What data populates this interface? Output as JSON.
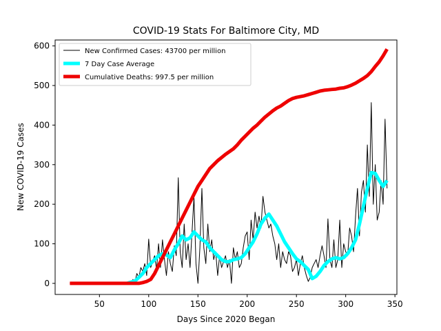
{
  "chart_data": {
    "type": "line",
    "title": "COVID-19 Stats For Baltimore City, MD",
    "xlabel": "Days Since 2020 Began",
    "ylabel": "New COVID-19 Cases",
    "xlim": [
      5,
      352
    ],
    "ylim": [
      -28,
      615
    ],
    "xticks": [
      50,
      100,
      150,
      200,
      250,
      300,
      350
    ],
    "yticks": [
      0,
      100,
      200,
      300,
      400,
      500,
      600
    ],
    "grid": false,
    "legend_position": "top-left",
    "series": [
      {
        "name": "New Confirmed Cases: 43700 per million",
        "color": "#000000",
        "style": "thin",
        "points": [
          [
            20,
            0
          ],
          [
            40,
            0
          ],
          [
            60,
            0
          ],
          [
            78,
            0
          ],
          [
            80,
            5
          ],
          [
            82,
            0
          ],
          [
            84,
            10
          ],
          [
            86,
            3
          ],
          [
            88,
            25
          ],
          [
            90,
            15
          ],
          [
            92,
            40
          ],
          [
            94,
            30
          ],
          [
            96,
            50
          ],
          [
            98,
            20
          ],
          [
            100,
            112
          ],
          [
            102,
            40
          ],
          [
            104,
            55
          ],
          [
            106,
            70
          ],
          [
            108,
            35
          ],
          [
            110,
            100
          ],
          [
            112,
            40
          ],
          [
            114,
            110
          ],
          [
            116,
            60
          ],
          [
            118,
            20
          ],
          [
            120,
            80
          ],
          [
            122,
            50
          ],
          [
            124,
            30
          ],
          [
            126,
            95
          ],
          [
            128,
            70
          ],
          [
            130,
            267
          ],
          [
            132,
            80
          ],
          [
            134,
            40
          ],
          [
            136,
            150
          ],
          [
            138,
            60
          ],
          [
            140,
            100
          ],
          [
            142,
            40
          ],
          [
            144,
            130
          ],
          [
            146,
            218
          ],
          [
            148,
            50
          ],
          [
            150,
            0
          ],
          [
            152,
            90
          ],
          [
            154,
            240
          ],
          [
            156,
            90
          ],
          [
            158,
            50
          ],
          [
            160,
            150
          ],
          [
            162,
            80
          ],
          [
            164,
            110
          ],
          [
            166,
            60
          ],
          [
            168,
            80
          ],
          [
            170,
            20
          ],
          [
            172,
            70
          ],
          [
            174,
            40
          ],
          [
            176,
            55
          ],
          [
            178,
            70
          ],
          [
            180,
            40
          ],
          [
            182,
            60
          ],
          [
            184,
            0
          ],
          [
            186,
            90
          ],
          [
            188,
            60
          ],
          [
            190,
            80
          ],
          [
            192,
            40
          ],
          [
            194,
            50
          ],
          [
            196,
            90
          ],
          [
            198,
            120
          ],
          [
            200,
            130
          ],
          [
            202,
            60
          ],
          [
            204,
            160
          ],
          [
            206,
            110
          ],
          [
            208,
            180
          ],
          [
            210,
            140
          ],
          [
            212,
            170
          ],
          [
            214,
            140
          ],
          [
            216,
            220
          ],
          [
            218,
            180
          ],
          [
            220,
            160
          ],
          [
            222,
            140
          ],
          [
            224,
            150
          ],
          [
            226,
            120
          ],
          [
            228,
            100
          ],
          [
            230,
            60
          ],
          [
            232,
            100
          ],
          [
            234,
            40
          ],
          [
            236,
            80
          ],
          [
            238,
            60
          ],
          [
            240,
            50
          ],
          [
            242,
            80
          ],
          [
            244,
            70
          ],
          [
            246,
            30
          ],
          [
            248,
            40
          ],
          [
            250,
            60
          ],
          [
            252,
            20
          ],
          [
            254,
            50
          ],
          [
            256,
            70
          ],
          [
            258,
            40
          ],
          [
            260,
            20
          ],
          [
            262,
            5
          ],
          [
            264,
            15
          ],
          [
            266,
            40
          ],
          [
            268,
            50
          ],
          [
            270,
            60
          ],
          [
            272,
            40
          ],
          [
            274,
            70
          ],
          [
            276,
            95
          ],
          [
            278,
            70
          ],
          [
            280,
            40
          ],
          [
            282,
            163
          ],
          [
            284,
            60
          ],
          [
            286,
            40
          ],
          [
            288,
            110
          ],
          [
            290,
            40
          ],
          [
            292,
            60
          ],
          [
            294,
            160
          ],
          [
            296,
            40
          ],
          [
            298,
            100
          ],
          [
            300,
            80
          ],
          [
            302,
            70
          ],
          [
            304,
            140
          ],
          [
            306,
            120
          ],
          [
            308,
            80
          ],
          [
            310,
            170
          ],
          [
            312,
            240
          ],
          [
            314,
            120
          ],
          [
            316,
            230
          ],
          [
            318,
            260
          ],
          [
            320,
            180
          ],
          [
            322,
            350
          ],
          [
            324,
            220
          ],
          [
            326,
            457
          ],
          [
            328,
            200
          ],
          [
            330,
            300
          ],
          [
            332,
            160
          ],
          [
            334,
            180
          ],
          [
            336,
            260
          ],
          [
            338,
            200
          ],
          [
            340,
            415
          ],
          [
            342,
            240
          ]
        ]
      },
      {
        "name": "7 Day Case Average",
        "color": "#00ffff",
        "style": "thick",
        "points": [
          [
            78,
            0
          ],
          [
            82,
            3
          ],
          [
            86,
            6
          ],
          [
            90,
            15
          ],
          [
            94,
            25
          ],
          [
            98,
            40
          ],
          [
            102,
            50
          ],
          [
            106,
            60
          ],
          [
            110,
            70
          ],
          [
            114,
            75
          ],
          [
            118,
            72
          ],
          [
            122,
            65
          ],
          [
            126,
            85
          ],
          [
            130,
            100
          ],
          [
            134,
            120
          ],
          [
            138,
            110
          ],
          [
            142,
            115
          ],
          [
            146,
            130
          ],
          [
            150,
            120
          ],
          [
            154,
            110
          ],
          [
            158,
            105
          ],
          [
            162,
            90
          ],
          [
            166,
            80
          ],
          [
            170,
            70
          ],
          [
            174,
            60
          ],
          [
            178,
            55
          ],
          [
            182,
            55
          ],
          [
            186,
            60
          ],
          [
            190,
            62
          ],
          [
            194,
            65
          ],
          [
            198,
            75
          ],
          [
            202,
            90
          ],
          [
            206,
            105
          ],
          [
            210,
            125
          ],
          [
            214,
            150
          ],
          [
            218,
            165
          ],
          [
            222,
            175
          ],
          [
            226,
            160
          ],
          [
            230,
            145
          ],
          [
            234,
            125
          ],
          [
            238,
            105
          ],
          [
            242,
            90
          ],
          [
            246,
            75
          ],
          [
            250,
            62
          ],
          [
            254,
            55
          ],
          [
            258,
            45
          ],
          [
            262,
            35
          ],
          [
            266,
            12
          ],
          [
            270,
            18
          ],
          [
            274,
            30
          ],
          [
            278,
            45
          ],
          [
            282,
            55
          ],
          [
            286,
            62
          ],
          [
            290,
            65
          ],
          [
            294,
            62
          ],
          [
            298,
            65
          ],
          [
            302,
            75
          ],
          [
            306,
            90
          ],
          [
            310,
            110
          ],
          [
            314,
            150
          ],
          [
            318,
            195
          ],
          [
            322,
            240
          ],
          [
            326,
            280
          ],
          [
            330,
            278
          ],
          [
            334,
            260
          ],
          [
            338,
            245
          ],
          [
            342,
            260
          ]
        ]
      },
      {
        "name": "Cumulative Deaths: 997.5 per million",
        "color": "#ee0000",
        "style": "thick",
        "points": [
          [
            20,
            0
          ],
          [
            60,
            0
          ],
          [
            90,
            0
          ],
          [
            94,
            2
          ],
          [
            98,
            5
          ],
          [
            102,
            10
          ],
          [
            106,
            25
          ],
          [
            110,
            45
          ],
          [
            114,
            65
          ],
          [
            118,
            85
          ],
          [
            122,
            105
          ],
          [
            126,
            125
          ],
          [
            130,
            145
          ],
          [
            134,
            165
          ],
          [
            138,
            185
          ],
          [
            142,
            205
          ],
          [
            146,
            225
          ],
          [
            150,
            245
          ],
          [
            154,
            260
          ],
          [
            158,
            275
          ],
          [
            162,
            290
          ],
          [
            166,
            300
          ],
          [
            170,
            310
          ],
          [
            174,
            318
          ],
          [
            178,
            326
          ],
          [
            182,
            333
          ],
          [
            186,
            340
          ],
          [
            190,
            350
          ],
          [
            194,
            362
          ],
          [
            198,
            372
          ],
          [
            202,
            382
          ],
          [
            206,
            392
          ],
          [
            210,
            400
          ],
          [
            214,
            410
          ],
          [
            218,
            420
          ],
          [
            222,
            428
          ],
          [
            226,
            436
          ],
          [
            230,
            443
          ],
          [
            234,
            448
          ],
          [
            238,
            455
          ],
          [
            242,
            462
          ],
          [
            246,
            467
          ],
          [
            250,
            470
          ],
          [
            254,
            472
          ],
          [
            258,
            474
          ],
          [
            262,
            477
          ],
          [
            266,
            480
          ],
          [
            270,
            483
          ],
          [
            274,
            486
          ],
          [
            278,
            488
          ],
          [
            282,
            489
          ],
          [
            286,
            490
          ],
          [
            290,
            491
          ],
          [
            294,
            493
          ],
          [
            298,
            494
          ],
          [
            302,
            497
          ],
          [
            306,
            501
          ],
          [
            310,
            506
          ],
          [
            314,
            512
          ],
          [
            318,
            518
          ],
          [
            322,
            525
          ],
          [
            326,
            535
          ],
          [
            330,
            548
          ],
          [
            334,
            560
          ],
          [
            338,
            575
          ],
          [
            342,
            592
          ]
        ]
      }
    ]
  }
}
